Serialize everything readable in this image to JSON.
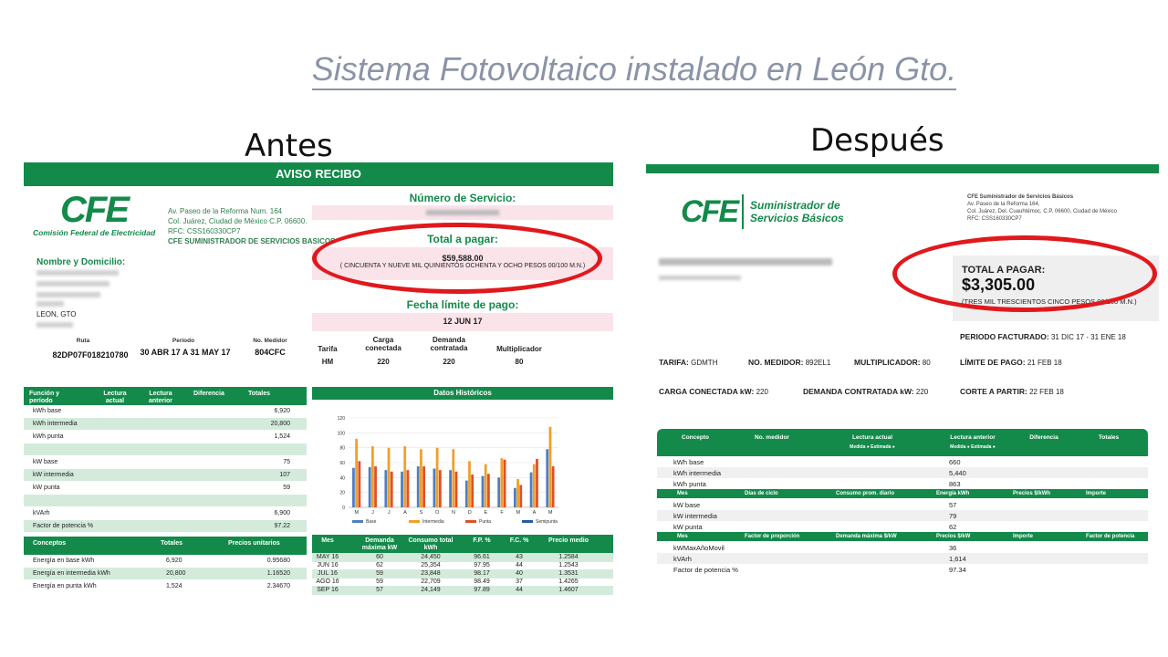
{
  "slide_title": "Sistema Fotovoltaico instalado en  León Gto.",
  "labels": {
    "antes": "Antes",
    "despues": "Después"
  },
  "colors": {
    "green": "#138a4a",
    "red_highlight": "#e0191c",
    "title_gray": "#8b94a6",
    "pink": "#fbe3ea"
  },
  "antes": {
    "header": "AVISO RECIBO",
    "logo": "CFE",
    "logo_sub": "Comisión Federal de Electricidad",
    "address": [
      "Av. Paseo de la Reforma Num. 164",
      "Col. Juárez, Ciudad de México C.P. 06600.",
      "RFC: CSS160330CP7",
      "CFE SUMINISTRADOR DE SERVICIOS BASICOS"
    ],
    "nombre_label": "Nombre y Domicilio:",
    "city": "LEON, GTO",
    "ruta_label": "Ruta",
    "ruta": "82DP07F018210780",
    "periodo_label": "Periodo",
    "periodo": "30 ABR 17 A 31 MAY 17",
    "medidor_label": "No. Medidor",
    "medidor": "804CFC",
    "numero_servicio_label": "Número de Servicio:",
    "total_label": "Total a pagar:",
    "total": "$59,588.00",
    "total_words": "( CINCUENTA Y NUEVE MIL QUINIENTOS OCHENTA Y OCHO PESOS 00/100 M.N.)",
    "fecha_label": "Fecha límite de pago:",
    "fecha": "12 JUN 17",
    "tarifa": {
      "labels": [
        "Tarifa",
        "Carga conectada",
        "Demanda contratada",
        "Multiplicador"
      ],
      "values": [
        "HM",
        "220",
        "220",
        "80"
      ]
    },
    "lecturas_header": [
      "Función y período",
      "Lectura actual",
      "Lectura anterior",
      "Diferencia",
      "Totales"
    ],
    "lecturas": [
      {
        "label": "kWh base",
        "value": "6,920"
      },
      {
        "label": "kWh intermedia",
        "value": "20,800"
      },
      {
        "label": "kWh punta",
        "value": "1,524"
      },
      {
        "label": "",
        "value": ""
      },
      {
        "label": "kW base",
        "value": "75"
      },
      {
        "label": "kW intermedia",
        "value": "107"
      },
      {
        "label": "kW punta",
        "value": "59"
      },
      {
        "label": "",
        "value": ""
      },
      {
        "label": "kVArh",
        "value": "6,900"
      },
      {
        "label": "Factor de potencia %",
        "value": "97.22"
      }
    ],
    "conceptos_header": [
      "Conceptos",
      "Totales",
      "Precios unitarios"
    ],
    "conceptos": [
      {
        "label": "Energía en base kWh",
        "total": "6,920",
        "precio": "0.95680"
      },
      {
        "label": "Energía en intermedia kWh",
        "total": "20,800",
        "precio": "1.16520"
      },
      {
        "label": "Energía en punta kWh",
        "total": "1,524",
        "precio": "2.34670"
      }
    ],
    "historicos_label": "Datos Históricos",
    "hist_table_header": [
      "Mes",
      "Demanda máxima kW",
      "Consumo total kWh",
      "F.P. %",
      "F.C. %",
      "Precio medio"
    ],
    "hist_table": [
      [
        "MAY 16",
        "60",
        "24,450",
        "96.61",
        "43",
        "1.2584"
      ],
      [
        "JUN 16",
        "62",
        "25,354",
        "97.95",
        "44",
        "1.2543"
      ],
      [
        "JUL 16",
        "59",
        "23,848",
        "98.17",
        "40",
        "1.3531"
      ],
      [
        "AGO 16",
        "59",
        "22,709",
        "98.49",
        "37",
        "1.4265"
      ],
      [
        "SEP 16",
        "57",
        "24,149",
        "97.89",
        "44",
        "1.4607"
      ]
    ]
  },
  "chart_data": {
    "type": "bar",
    "title": "",
    "categories": [
      "M",
      "J",
      "J",
      "A",
      "S",
      "O",
      "N",
      "D",
      "E",
      "F",
      "M",
      "A",
      "M"
    ],
    "series": [
      {
        "name": "Base",
        "color": "#4f7fc0",
        "values": [
          53,
          54,
          50,
          48,
          55,
          52,
          50,
          36,
          42,
          40,
          26,
          47,
          78
        ]
      },
      {
        "name": "Intermedia",
        "color": "#f0a028",
        "values": [
          92,
          82,
          80,
          82,
          78,
          80,
          78,
          62,
          58,
          66,
          38,
          58,
          108
        ]
      },
      {
        "name": "Punta",
        "color": "#e05028",
        "values": [
          62,
          55,
          48,
          50,
          55,
          50,
          48,
          44,
          45,
          64,
          30,
          65,
          55
        ]
      },
      {
        "name": "Semipunta",
        "color": "#2a5aa0",
        "values": [
          0,
          0,
          0,
          0,
          0,
          0,
          0,
          0,
          0,
          0,
          0,
          0,
          0
        ]
      }
    ],
    "yticks": [
      "0",
      "20",
      "40",
      "60",
      "80",
      "100",
      "120"
    ],
    "ylim": [
      0,
      120
    ],
    "legend": "bottom",
    "grid": true
  },
  "despues": {
    "logo": "CFE",
    "logo_sub": [
      "Suministrador de",
      "Servicios Básicos"
    ],
    "address": [
      "CFE Suministrador de Servicios Básicos",
      "Av. Paseo de la Reforma 164,",
      "Col. Juárez, Del. Cuauhtémoc, C.P. 06600, Ciudad de México",
      "RFC: CSS160330CP7"
    ],
    "total_label": "TOTAL A PAGAR:",
    "total": "$3,305.00",
    "total_words": "(TRES MIL TRESCIENTOS CINCO PESOS 00/100 M.N.)",
    "periodo_label": "PERIODO FACTURADO:",
    "periodo": "31 DIC 17 - 31 ENE 18",
    "tarifa_label": "TARIFA:",
    "tarifa": "GDMTH",
    "medidor_label": "NO. MEDIDOR:",
    "medidor": "892EL1",
    "multiplicador_label": "MULTIPLICADOR:",
    "multiplicador": "80",
    "limite_label": "LÍMITE DE PAGO:",
    "limite": "21 FEB 18",
    "carga_label": "CARGA CONECTADA kW:",
    "carga": "220",
    "demanda_label": "DEMANDA CONTRATADA kW:",
    "demanda": "220",
    "corte_label": "CORTE A PARTIR:",
    "corte": "22 FEB 18",
    "table_header": [
      "Concepto",
      "No. medidor",
      "Lectura actual",
      "Lectura anterior",
      "Diferencia",
      "Totales"
    ],
    "header_sub": "Medida ● Estimada ●",
    "rows1": [
      {
        "label": "kWh base",
        "value": "660"
      },
      {
        "label": "kWh intermedia",
        "value": "5,440"
      },
      {
        "label": "kWh punta",
        "value": "863"
      }
    ],
    "subheader1": [
      "Mes",
      "Días de ciclo",
      "Consumo prom. diario",
      "Energía kWh",
      "Precios $/kWh",
      "Importe"
    ],
    "rows2": [
      {
        "label": "kW base",
        "value": "57"
      },
      {
        "label": "kW intermedia",
        "value": "79"
      },
      {
        "label": "kW punta",
        "value": "62"
      }
    ],
    "subheader2": [
      "Mes",
      "Factor de proporción",
      "Demanda máxima $/kW",
      "Precios $/kW",
      "Importe",
      "Factor de potencia"
    ],
    "rows3": [
      {
        "label": "kWMaxAñoMovil",
        "value": "36"
      },
      {
        "label": "kVArh",
        "value": "1,614"
      },
      {
        "label": "Factor de potencia %",
        "value": "97.34"
      }
    ]
  }
}
